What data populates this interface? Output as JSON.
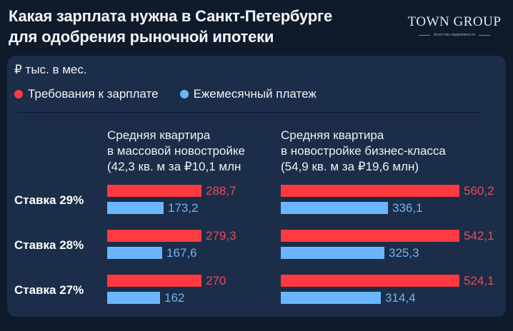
{
  "header": {
    "title_line1": "Какая зарплата нужна в Санкт-Петербурге",
    "title_line2": "для одобрения рыночной ипотеки",
    "brand_name": "TOWN GROUP",
    "brand_sub": "Агентство недвижимости"
  },
  "colors": {
    "background": "#0f1a2a",
    "card": "#1b2d48",
    "salary": "#ff3b3f",
    "payment": "#69b6ff",
    "salary_text": "#ef4a57",
    "payment_text": "#72b4f2"
  },
  "chart_data": {
    "type": "bar",
    "orientation": "horizontal",
    "title": "Какая зарплата нужна в Санкт-Петербурге для одобрения рыночной ипотеки",
    "unit": "₽ тыс. в мес.",
    "legend": [
      "Требования к зарплате",
      "Ежемесячный платеж"
    ],
    "categories": [
      "Ставка 29%",
      "Ставка 28%",
      "Ставка 27%"
    ],
    "groups": [
      {
        "title_lines": [
          "Средняя квартира",
          "в массовой новостройке",
          "(42,3 кв. м за ₽10,1 млн"
        ],
        "series": [
          {
            "name": "Требования к зарплате",
            "values": [
              288.7,
              279.3,
              270
            ],
            "labels": [
              "288,7",
              "279,3",
              "270"
            ]
          },
          {
            "name": "Ежемесячный платеж",
            "values": [
              173.2,
              167.6,
              162
            ],
            "labels": [
              "173,2",
              "167,6",
              "162"
            ]
          }
        ]
      },
      {
        "title_lines": [
          "Средняя квартира",
          "в новостройке бизнес-класса",
          "(54,9 кв. м за ₽19,6 млн)"
        ],
        "series": [
          {
            "name": "Требования к зарплате",
            "values": [
              560.2,
              542.1,
              524.1
            ],
            "labels": [
              "560,2",
              "542,1",
              "524,1"
            ]
          },
          {
            "name": "Ежемесячный платеж",
            "values": [
              336.1,
              325.3,
              314.4
            ],
            "labels": [
              "336,1",
              "325,3",
              "314,4"
            ]
          }
        ]
      }
    ]
  }
}
